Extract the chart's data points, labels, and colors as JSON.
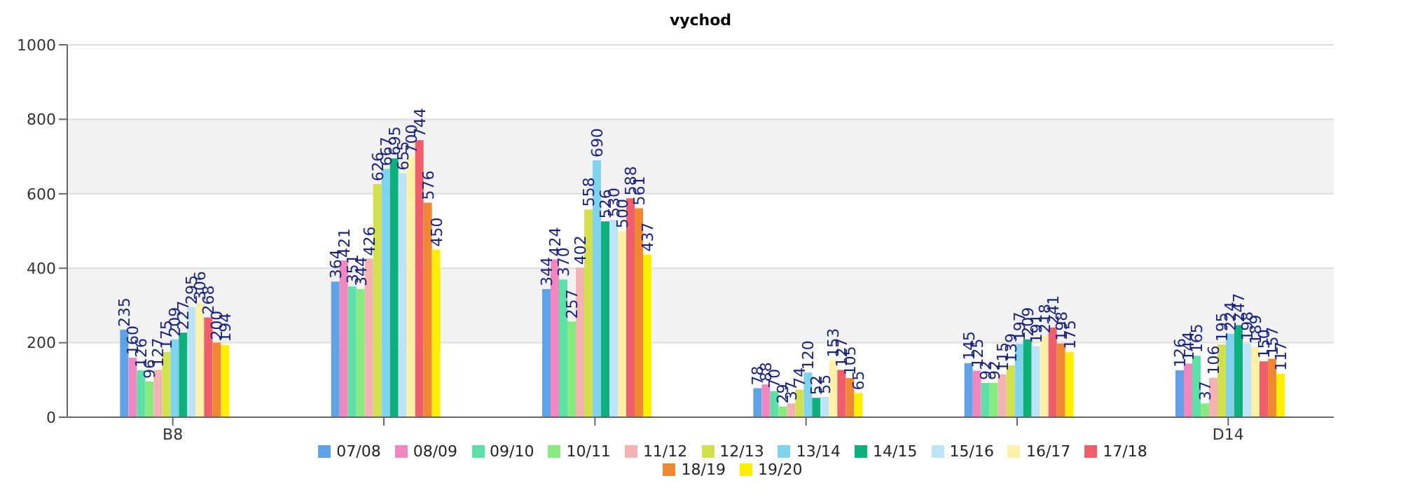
{
  "chart_data": {
    "type": "bar",
    "title": "vychod",
    "categories": [
      "B8",
      null,
      null,
      null,
      null,
      "D14"
    ],
    "series": [
      {
        "name": "07/08",
        "color": "#5fa2e8",
        "values": [
          235,
          364,
          344,
          78,
          145,
          126
        ]
      },
      {
        "name": "08/09",
        "color": "#f087c0",
        "values": [
          160,
          421,
          424,
          88,
          125,
          144
        ]
      },
      {
        "name": "09/10",
        "color": "#5de0a8",
        "values": [
          126,
          351,
          370,
          70,
          92,
          165
        ]
      },
      {
        "name": "10/11",
        "color": "#86ea7e",
        "values": [
          96,
          344,
          257,
          29,
          92,
          37
        ]
      },
      {
        "name": "11/12",
        "color": "#f4b2b2",
        "values": [
          127,
          426,
          402,
          37,
          115,
          106
        ]
      },
      {
        "name": "12/13",
        "color": "#d2e04d",
        "values": [
          175,
          626,
          558,
          74,
          139,
          195
        ]
      },
      {
        "name": "13/14",
        "color": "#7fd3ec",
        "values": [
          209,
          667,
          690,
          120,
          197,
          224
        ]
      },
      {
        "name": "14/15",
        "color": "#0db07a",
        "values": [
          227,
          695,
          526,
          52,
          209,
          247
        ]
      },
      {
        "name": "15/16",
        "color": "#bde3f6",
        "values": [
          295,
          655,
          530,
          55,
          191,
          198
        ]
      },
      {
        "name": "16/17",
        "color": "#fff0a8",
        "values": [
          306,
          700,
          500,
          153,
          218,
          189
        ]
      },
      {
        "name": "17/18",
        "color": "#ef5e6a",
        "values": [
          268,
          744,
          588,
          127,
          241,
          150
        ]
      },
      {
        "name": "18/19",
        "color": "#ee8833",
        "values": [
          200,
          576,
          561,
          105,
          198,
          157
        ]
      },
      {
        "name": "19/20",
        "color": "#ffee00",
        "values": [
          194,
          450,
          437,
          65,
          175,
          117
        ]
      }
    ],
    "ylim": [
      0,
      1000
    ],
    "yticks": [
      0,
      200,
      400,
      600,
      800,
      1000
    ],
    "grid": "y",
    "legend": "bottom",
    "data_labels": true
  }
}
